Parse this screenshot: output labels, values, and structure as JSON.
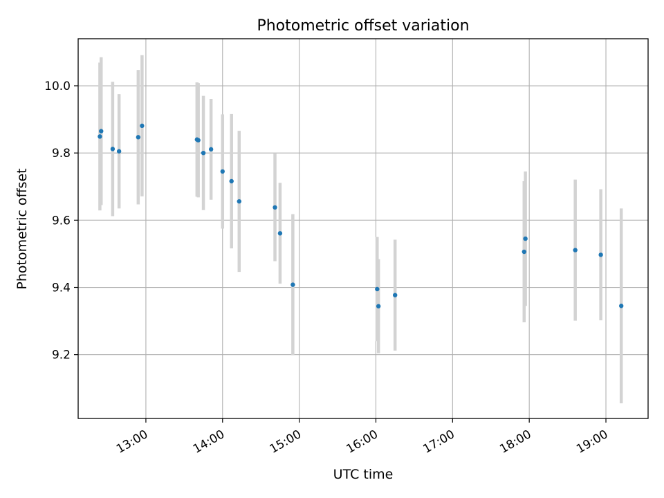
{
  "chart_data": {
    "type": "scatter",
    "title": "Photometric offset variation",
    "xlabel": "UTC time",
    "ylabel": "Photometric offset",
    "xlim": [
      "12:07",
      "19:33"
    ],
    "ylim": [
      9.01,
      10.14
    ],
    "x_ticks": [
      "13:00",
      "14:00",
      "15:00",
      "16:00",
      "17:00",
      "18:00",
      "19:00"
    ],
    "y_ticks": [
      9.2,
      9.4,
      9.6,
      9.8,
      10.0
    ],
    "y_tick_labels": [
      "9.2",
      "9.4",
      "9.6",
      "9.8",
      "10.0"
    ],
    "grid": true,
    "legend": false,
    "colors": {
      "points": "#1f77b4",
      "errorbars": "#d3d3d3",
      "grid": "#b0b0b0"
    },
    "points": [
      {
        "x": "12:24",
        "y": 9.849,
        "yerr": 0.22
      },
      {
        "x": "12:25",
        "y": 9.865,
        "yerr": 0.22
      },
      {
        "x": "12:34",
        "y": 9.812,
        "yerr": 0.2
      },
      {
        "x": "12:39",
        "y": 9.805,
        "yerr": 0.17
      },
      {
        "x": "12:54",
        "y": 9.847,
        "yerr": 0.2
      },
      {
        "x": "12:57",
        "y": 9.881,
        "yerr": 0.21
      },
      {
        "x": "13:40",
        "y": 9.84,
        "yerr": 0.17
      },
      {
        "x": "13:41",
        "y": 9.838,
        "yerr": 0.17
      },
      {
        "x": "13:45",
        "y": 9.8,
        "yerr": 0.17
      },
      {
        "x": "13:51",
        "y": 9.811,
        "yerr": 0.15
      },
      {
        "x": "14:00",
        "y": 9.745,
        "yerr": 0.17
      },
      {
        "x": "14:07",
        "y": 9.716,
        "yerr": 0.2
      },
      {
        "x": "14:13",
        "y": 9.656,
        "yerr": 0.21
      },
      {
        "x": "14:41",
        "y": 9.638,
        "yerr": 0.16
      },
      {
        "x": "14:45",
        "y": 9.561,
        "yerr": 0.15
      },
      {
        "x": "14:55",
        "y": 9.408,
        "yerr": 0.21
      },
      {
        "x": "16:01",
        "y": 9.395,
        "yerr": 0.155
      },
      {
        "x": "16:02",
        "y": 9.344,
        "yerr": 0.14
      },
      {
        "x": "16:15",
        "y": 9.377,
        "yerr": 0.165
      },
      {
        "x": "17:56",
        "y": 9.506,
        "yerr": 0.21
      },
      {
        "x": "17:57",
        "y": 9.545,
        "yerr": 0.2
      },
      {
        "x": "18:36",
        "y": 9.511,
        "yerr": 0.21
      },
      {
        "x": "18:56",
        "y": 9.497,
        "yerr": 0.195
      },
      {
        "x": "19:12",
        "y": 9.345,
        "yerr": 0.29
      }
    ]
  }
}
